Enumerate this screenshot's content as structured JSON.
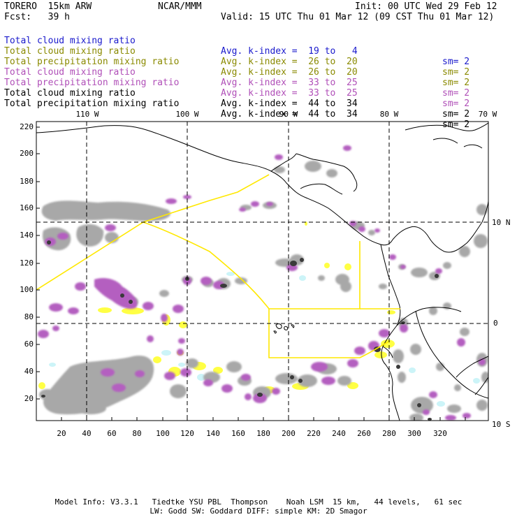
{
  "header": {
    "model": "TORERO  15km ARW",
    "org": "NCAR/MMM",
    "init": "Init: 00 UTC Wed 29 Feb 12",
    "fcst": "Fcst:   39 h",
    "valid": "Valid: 15 UTC Thu 01 Mar 12 (09 CST Thu 01 Mar 12)"
  },
  "legend": [
    {
      "label": "Total cloud mixing ratio",
      "index": "Avg. k-index =  19 to   4",
      "sm": "sm= 2",
      "color": "#1a1acc"
    },
    {
      "label": "Total cloud mixing ratio",
      "index": "Avg. k-index =  26 to  20",
      "sm": "sm= 2",
      "color": "#8a8a00"
    },
    {
      "label": "Total precipitation mixing ratio",
      "index": "Avg. k-index =  26 to  20",
      "sm": "sm= 2",
      "color": "#8a8a00"
    },
    {
      "label": "Total cloud mixing ratio",
      "index": "Avg. k-index =  33 to  25",
      "sm": "sm= 2",
      "color": "#b04fb8"
    },
    {
      "label": "Total precipitation mixing ratio",
      "index": "Avg. k-index =  33 to  25",
      "sm": "sm= 2",
      "color": "#b04fb8"
    },
    {
      "label": "Total cloud mixing ratio",
      "index": "Avg. k-index =  44 to  34",
      "sm": "sm= 2",
      "color": "#000000"
    },
    {
      "label": "Total precipitation mixing ratio",
      "index": "Avg. k-index =  44 to  34",
      "sm": "sm= 2",
      "color": "#000000"
    }
  ],
  "map": {
    "lon_labels": [
      "110 W",
      "100 W",
      "90 W",
      "80 W",
      "70 W"
    ],
    "lat_labels": [
      "10 N",
      "0",
      "10 S"
    ],
    "y_ticks": [
      "220",
      "200",
      "180",
      "160",
      "140",
      "120",
      "100",
      "80",
      "60",
      "40",
      "20"
    ],
    "x_ticks": [
      "20",
      "40",
      "60",
      "80",
      "100",
      "120",
      "140",
      "160",
      "180",
      "200",
      "220",
      "240",
      "260",
      "280",
      "300",
      "320"
    ],
    "colors": {
      "cloud": "#a8a8a8",
      "precip": "#b45fc0",
      "yellow": "#ffff44",
      "cyan": "#ccf4f8",
      "outline": "#ffe800"
    }
  },
  "footer": {
    "line1": "Model Info: V3.3.1   Tiedtke YSU PBL  Thompson    Noah LSM  15 km,   44 levels,   61 sec",
    "line2": "LW: Godd SW: Goddard DIFF: simple KM: 2D Smagor"
  }
}
